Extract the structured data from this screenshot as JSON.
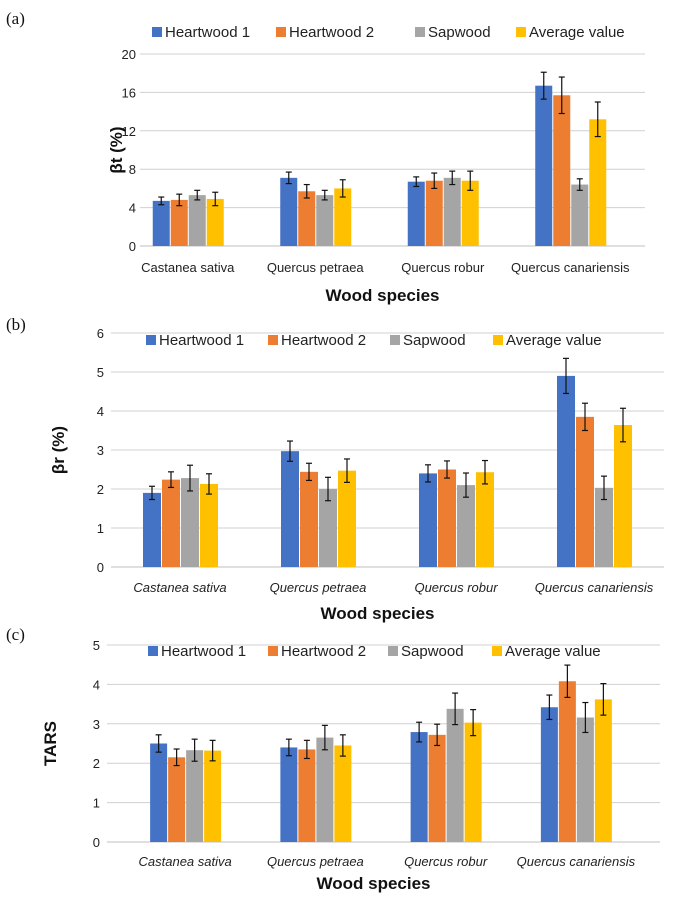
{
  "chart_data": [
    {
      "type": "bar",
      "panel_label": "(a)",
      "ylabel": "βt (%)",
      "xlabel": "Wood species",
      "categories": [
        "Castanea sativa",
        "Quercus petraea",
        "Quercus robur",
        "Quercus canariensis"
      ],
      "categories_italic": false,
      "ylim": [
        0,
        20
      ],
      "yticks": [
        0,
        4,
        8,
        12,
        16,
        20
      ],
      "grid": true,
      "legend_position": "top",
      "series": [
        {
          "name": "Heartwood 1",
          "color": "#4472C4",
          "values": [
            4.7,
            7.1,
            6.7,
            16.7
          ],
          "errors": [
            0.4,
            0.6,
            0.5,
            1.4
          ]
        },
        {
          "name": "Heartwood 2",
          "color": "#ED7D31",
          "values": [
            4.8,
            5.7,
            6.8,
            15.7
          ],
          "errors": [
            0.6,
            0.7,
            0.8,
            1.9
          ]
        },
        {
          "name": "Sapwood",
          "color": "#A5A5A5",
          "values": [
            5.3,
            5.3,
            7.1,
            6.4
          ],
          "errors": [
            0.5,
            0.5,
            0.7,
            0.6
          ]
        },
        {
          "name": "Average value",
          "color": "#FFC000",
          "values": [
            4.9,
            6.0,
            6.8,
            13.2
          ],
          "errors": [
            0.7,
            0.9,
            1.0,
            1.8
          ]
        }
      ]
    },
    {
      "type": "bar",
      "panel_label": "(b)",
      "ylabel": "βr (%)",
      "xlabel": "Wood species",
      "categories": [
        "Castanea sativa",
        "Quercus petraea",
        "Quercus robur",
        "Quercus canariensis"
      ],
      "categories_italic": true,
      "ylim": [
        0,
        6
      ],
      "yticks": [
        0,
        1,
        2,
        3,
        4,
        5,
        6
      ],
      "grid": true,
      "legend_position": "top",
      "series": [
        {
          "name": "Heartwood 1",
          "color": "#4472C4",
          "values": [
            1.9,
            2.97,
            2.4,
            4.9
          ],
          "errors": [
            0.17,
            0.26,
            0.22,
            0.45
          ]
        },
        {
          "name": "Heartwood 2",
          "color": "#ED7D31",
          "values": [
            2.24,
            2.44,
            2.5,
            3.85
          ],
          "errors": [
            0.2,
            0.22,
            0.22,
            0.35
          ]
        },
        {
          "name": "Sapwood",
          "color": "#A5A5A5",
          "values": [
            2.28,
            2.0,
            2.1,
            2.03
          ],
          "errors": [
            0.33,
            0.3,
            0.31,
            0.3
          ]
        },
        {
          "name": "Average value",
          "color": "#FFC000",
          "values": [
            2.13,
            2.47,
            2.43,
            3.64
          ],
          "errors": [
            0.26,
            0.3,
            0.3,
            0.43
          ]
        }
      ]
    },
    {
      "type": "bar",
      "panel_label": "(c)",
      "ylabel": "TARS",
      "xlabel": "Wood species",
      "categories": [
        "Castanea sativa",
        "Quercus petraea",
        "Quercus robur",
        "Quercus canariensis"
      ],
      "categories_italic": true,
      "ylim": [
        0,
        5
      ],
      "yticks": [
        0,
        1,
        2,
        3,
        4,
        5
      ],
      "grid": true,
      "legend_position": "top",
      "series": [
        {
          "name": "Heartwood 1",
          "color": "#4472C4",
          "values": [
            2.5,
            2.4,
            2.79,
            3.42
          ],
          "errors": [
            0.22,
            0.21,
            0.25,
            0.31
          ]
        },
        {
          "name": "Heartwood 2",
          "color": "#ED7D31",
          "values": [
            2.15,
            2.35,
            2.72,
            4.08
          ],
          "errors": [
            0.21,
            0.23,
            0.27,
            0.41
          ]
        },
        {
          "name": "Sapwood",
          "color": "#A5A5A5",
          "values": [
            2.33,
            2.65,
            3.38,
            3.16
          ],
          "errors": [
            0.28,
            0.31,
            0.4,
            0.38
          ]
        },
        {
          "name": "Average value",
          "color": "#FFC000",
          "values": [
            2.32,
            2.45,
            3.03,
            3.62
          ],
          "errors": [
            0.26,
            0.27,
            0.33,
            0.4
          ]
        }
      ]
    }
  ]
}
